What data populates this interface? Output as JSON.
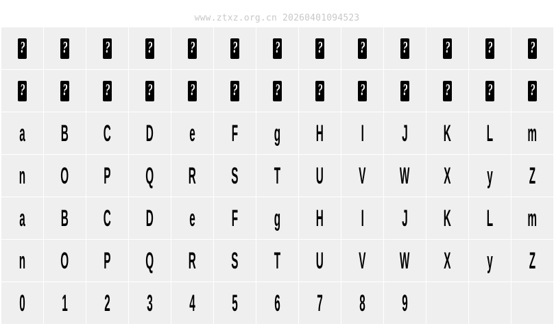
{
  "watermark": "www.ztxz.org.cn 20260401094523",
  "rows": [
    [
      "?",
      "?",
      "?",
      "?",
      "?",
      "?",
      "?",
      "?",
      "?",
      "?",
      "?",
      "?",
      "?"
    ],
    [
      "?",
      "?",
      "?",
      "?",
      "?",
      "?",
      "?",
      "?",
      "?",
      "?",
      "?",
      "?",
      "?"
    ],
    [
      "a",
      "B",
      "C",
      "D",
      "e",
      "F",
      "g",
      "H",
      "I",
      "J",
      "K",
      "L",
      "m"
    ],
    [
      "n",
      "O",
      "P",
      "Q",
      "R",
      "S",
      "T",
      "U",
      "V",
      "W",
      "X",
      "y",
      "Z"
    ],
    [
      "a",
      "B",
      "C",
      "D",
      "e",
      "F",
      "g",
      "H",
      "I",
      "J",
      "K",
      "L",
      "m"
    ],
    [
      "n",
      "O",
      "P",
      "Q",
      "R",
      "S",
      "T",
      "U",
      "V",
      "W",
      "X",
      "y",
      "Z"
    ],
    [
      "0",
      "1",
      "2",
      "3",
      "4",
      "5",
      "6",
      "7",
      "8",
      "9",
      "",
      "",
      ""
    ]
  ],
  "missing_rows": [
    0,
    1
  ]
}
